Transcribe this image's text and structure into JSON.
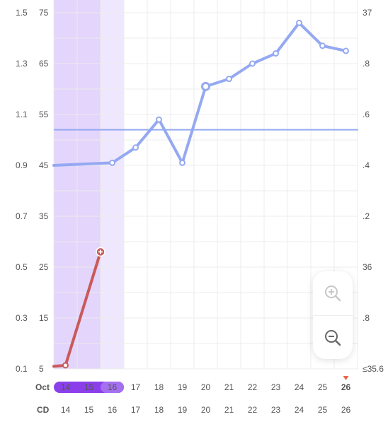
{
  "chart_data": {
    "type": "line",
    "x": [
      14,
      15,
      16,
      17,
      18,
      19,
      20,
      21,
      22,
      23,
      24,
      25,
      26
    ],
    "month_label": "Oct",
    "row_label_cd": "CD",
    "cd_values": [
      "14",
      "15",
      "16",
      "17",
      "18",
      "19",
      "20",
      "21",
      "22",
      "23",
      "24",
      "25",
      "26"
    ],
    "highlight_days": [
      14,
      15,
      16
    ],
    "fertile_days": [
      14,
      15,
      16
    ],
    "light_days": [
      16
    ],
    "today": 26,
    "axis_left_outer": [
      "1.5",
      "1.3",
      "1.1",
      "0.9",
      "0.7",
      "0.5",
      "0.3",
      "0.1"
    ],
    "axis_left_inner": [
      "75",
      "65",
      "55",
      "45",
      "35",
      "25",
      "15",
      "5"
    ],
    "axis_right": [
      "37",
      ".8",
      ".6",
      ".4",
      ".2",
      "36",
      ".8",
      "≤35.6"
    ],
    "ylim_left_inner": [
      5,
      75
    ],
    "threshold": 52,
    "series": [
      {
        "color": "#95a9f2",
        "x": [
          13.5,
          16,
          17,
          18,
          19,
          20,
          21,
          22,
          23,
          24,
          25,
          26
        ],
        "values": [
          45,
          45.5,
          48.5,
          54,
          45.5,
          60.5,
          62,
          65,
          67,
          73,
          68.5,
          67.5
        ],
        "marked_points": [
          16,
          17,
          18,
          19,
          20,
          21,
          22,
          23,
          24,
          25,
          26
        ],
        "large_points": [
          20
        ]
      },
      {
        "color": "#c95a5a",
        "x": [
          13.5,
          14,
          15.5
        ],
        "values": [
          5.5,
          5.7,
          28
        ],
        "marked_points": [
          14,
          15.5
        ],
        "plus_points": [
          15.5
        ]
      }
    ]
  },
  "zoom": {
    "zoom_in_icon": "zoom-in-icon",
    "zoom_out_icon": "zoom-out-icon"
  },
  "colors": {
    "highlight_dark": "#e3d5fb",
    "highlight_light": "#efe7fd",
    "pill": "#8a3fea",
    "pill_light": "#a46ff0",
    "cd_text": "#9c66ee",
    "today_marker": "#e9664a"
  }
}
